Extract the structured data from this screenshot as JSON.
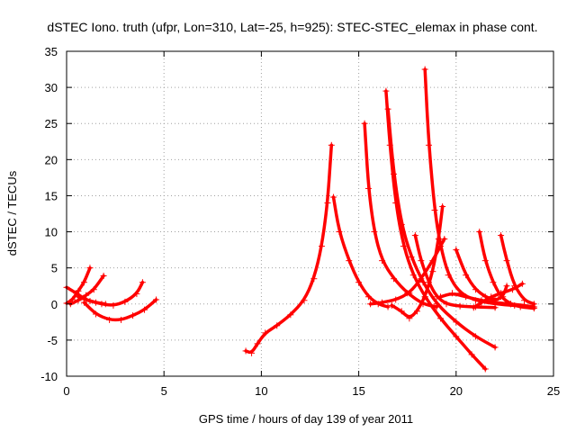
{
  "chart_data": {
    "type": "scatter",
    "title": "dSTEC Iono. truth (ufpr, Lon=310, Lat=-25, h=925): STEC-STEC_elemax in phase cont.",
    "xlabel": "GPS time / hours of day 139 of year 2011",
    "ylabel": "dSTEC  / TECUs",
    "xlim": [
      0,
      25
    ],
    "ylim": [
      -10,
      35
    ],
    "xticks": [
      "0",
      "5",
      "10",
      "15",
      "20",
      "25"
    ],
    "yticks": [
      "-10",
      "-5",
      "0",
      "5",
      "10",
      "15",
      "20",
      "25",
      "30",
      "35"
    ],
    "grid": true,
    "color": "#ff0000",
    "marker": "plus",
    "series": [
      {
        "x": [
          0.0,
          0.3,
          0.6,
          0.9,
          1.2
        ],
        "y": [
          0.1,
          0.6,
          1.8,
          3.0,
          5.0
        ]
      },
      {
        "x": [
          0.0,
          0.5,
          1.0,
          1.5,
          2.0
        ],
        "y": [
          2.3,
          1.5,
          0.6,
          0.2,
          0.0
        ]
      },
      {
        "x": [
          0.2,
          0.6,
          1.0,
          1.4,
          1.9
        ],
        "y": [
          0.0,
          0.5,
          1.2,
          2.0,
          3.9
        ]
      },
      {
        "x": [
          0.6,
          1.2,
          1.8,
          2.4,
          3.0,
          3.6,
          3.9
        ],
        "y": [
          1.0,
          0.4,
          0.0,
          -0.2,
          0.3,
          1.4,
          3.0
        ]
      },
      {
        "x": [
          0.9,
          1.5,
          2.2,
          2.8,
          3.4,
          4.0,
          4.6
        ],
        "y": [
          0.2,
          -1.4,
          -2.2,
          -2.2,
          -1.6,
          -0.8,
          0.6
        ]
      },
      {
        "x": [
          9.2,
          9.5,
          9.8,
          10.2,
          10.8,
          11.5,
          12.2,
          12.7,
          13.1,
          13.4,
          13.6
        ],
        "y": [
          -6.5,
          -6.8,
          -5.5,
          -4.0,
          -3.0,
          -1.5,
          0.5,
          3.5,
          8.0,
          14.0,
          22.0
        ]
      },
      {
        "x": [
          13.7,
          14.0,
          14.5,
          15.0,
          15.5,
          16.0,
          16.5
        ],
        "y": [
          14.8,
          10.0,
          6.0,
          3.0,
          1.0,
          0.0,
          -0.4
        ]
      },
      {
        "x": [
          15.3,
          15.5,
          15.8,
          16.2,
          16.8,
          17.5,
          18.3,
          19.0
        ],
        "y": [
          25.0,
          16.0,
          10.0,
          6.0,
          3.5,
          1.5,
          0.0,
          -0.4
        ]
      },
      {
        "x": [
          16.4,
          16.6,
          16.9,
          17.3,
          17.8,
          18.4,
          19.2,
          20.0,
          20.8,
          21.5
        ],
        "y": [
          29.5,
          22.0,
          14.0,
          8.0,
          4.0,
          1.0,
          -2.0,
          -4.5,
          -7.0,
          -9.0
        ]
      },
      {
        "x": [
          16.5,
          16.8,
          17.2,
          17.7,
          18.3,
          19.0,
          20.0,
          21.0,
          22.0
        ],
        "y": [
          27.0,
          18.0,
          11.0,
          6.5,
          3.0,
          0.0,
          -2.5,
          -4.5,
          -6.0
        ]
      },
      {
        "x": [
          18.4,
          18.6,
          18.9,
          19.2,
          19.6,
          20.2,
          21.0,
          22.0,
          23.0,
          24.0
        ],
        "y": [
          32.5,
          22.0,
          13.0,
          8.0,
          4.0,
          1.5,
          0.5,
          0.0,
          -0.2,
          -0.4
        ]
      },
      {
        "x": [
          16.7,
          17.2,
          17.6,
          18.0,
          18.4,
          18.8,
          19.1,
          19.3
        ],
        "y": [
          -0.2,
          -1.0,
          -2.0,
          -1.0,
          1.0,
          4.5,
          9.0,
          13.5
        ]
      },
      {
        "x": [
          17.9,
          18.2,
          18.6,
          19.0,
          19.5,
          20.2,
          21.0,
          22.0
        ],
        "y": [
          9.5,
          6.0,
          3.0,
          1.0,
          0.0,
          -0.3,
          -0.4,
          -0.5
        ]
      },
      {
        "x": [
          15.6,
          16.2,
          16.9,
          17.6,
          18.2,
          18.8,
          19.4
        ],
        "y": [
          0.0,
          0.2,
          0.6,
          1.5,
          3.5,
          6.0,
          9.0
        ]
      },
      {
        "x": [
          20.0,
          20.5,
          21.0,
          21.5,
          22.0,
          22.4,
          22.6
        ],
        "y": [
          7.5,
          4.0,
          2.0,
          1.0,
          0.5,
          1.0,
          2.5
        ]
      },
      {
        "x": [
          20.9,
          21.3,
          21.8,
          22.3,
          22.9,
          23.4
        ],
        "y": [
          -0.5,
          0.2,
          1.0,
          1.5,
          2.0,
          2.8
        ]
      },
      {
        "x": [
          21.2,
          21.5,
          21.9,
          22.3,
          22.8,
          23.3,
          24.0
        ],
        "y": [
          10.0,
          6.0,
          3.0,
          1.0,
          0.0,
          -0.4,
          -0.6
        ]
      },
      {
        "x": [
          22.3,
          22.6,
          23.0,
          23.5,
          24.0
        ],
        "y": [
          9.5,
          6.0,
          2.5,
          0.5,
          0.0
        ]
      },
      {
        "x": [
          19.2,
          19.8,
          20.5,
          21.3,
          22.0,
          22.8,
          23.5,
          24.0
        ],
        "y": [
          1.0,
          1.5,
          1.0,
          0.5,
          0.2,
          0.0,
          -0.2,
          -0.4
        ]
      }
    ]
  }
}
